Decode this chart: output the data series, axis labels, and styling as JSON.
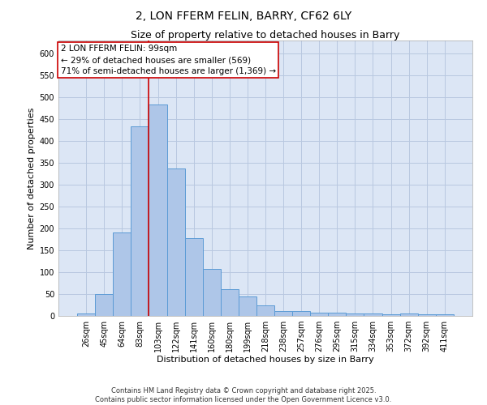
{
  "title": "2, LON FFERM FELIN, BARRY, CF62 6LY",
  "subtitle": "Size of property relative to detached houses in Barry",
  "xlabel": "Distribution of detached houses by size in Barry",
  "ylabel": "Number of detached properties",
  "categories": [
    "26sqm",
    "45sqm",
    "64sqm",
    "83sqm",
    "103sqm",
    "122sqm",
    "141sqm",
    "160sqm",
    "180sqm",
    "199sqm",
    "218sqm",
    "238sqm",
    "257sqm",
    "276sqm",
    "295sqm",
    "315sqm",
    "334sqm",
    "353sqm",
    "372sqm",
    "392sqm",
    "411sqm"
  ],
  "values": [
    5,
    50,
    190,
    433,
    483,
    338,
    178,
    108,
    62,
    44,
    24,
    11,
    11,
    8,
    8,
    5,
    5,
    4,
    5,
    3,
    3
  ],
  "bar_color": "#aec6e8",
  "bar_edge_color": "#5b9bd5",
  "red_line_x": 3.5,
  "annotation_text_line1": "2 LON FFERM FELIN: 99sqm",
  "annotation_text_line2": "← 29% of detached houses are smaller (569)",
  "annotation_text_line3": "71% of semi-detached houses are larger (1,369) →",
  "annotation_box_facecolor": "#ffffff",
  "annotation_box_edgecolor": "#cc0000",
  "red_line_color": "#cc0000",
  "ylim": [
    0,
    630
  ],
  "yticks": [
    0,
    50,
    100,
    150,
    200,
    250,
    300,
    350,
    400,
    450,
    500,
    550,
    600
  ],
  "ax_facecolor": "#dce6f5",
  "background_color": "#ffffff",
  "grid_color": "#b8c8e0",
  "footer_text": "Contains HM Land Registry data © Crown copyright and database right 2025.\nContains public sector information licensed under the Open Government Licence v3.0.",
  "title_fontsize": 10,
  "subtitle_fontsize": 9,
  "axis_label_fontsize": 8,
  "tick_fontsize": 7,
  "annotation_fontsize": 7.5,
  "footer_fontsize": 6
}
